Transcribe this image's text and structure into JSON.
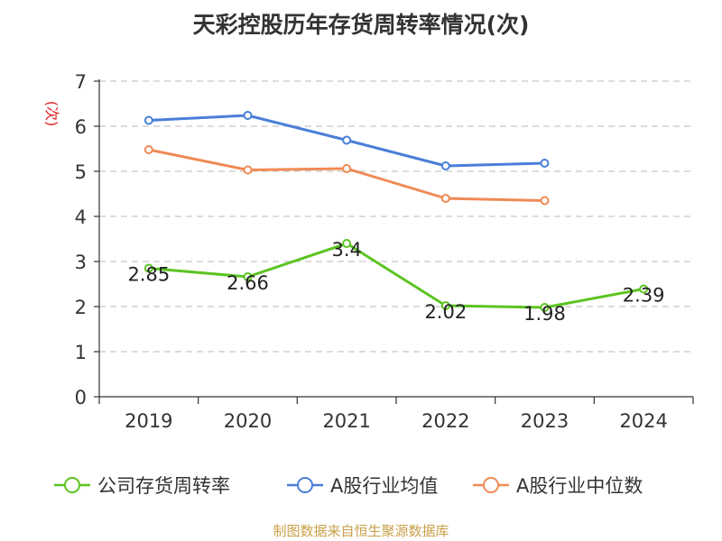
{
  "title": "天彩控股历年存货周转率情况(次)",
  "source": "制图数据来自恒生聚源数据库",
  "chart_data": {
    "type": "line",
    "categories": [
      "2019",
      "2020",
      "2021",
      "2022",
      "2023",
      "2024"
    ],
    "ylabel": "(次)",
    "ylim": [
      0,
      7
    ],
    "yticks": [
      "0",
      "1",
      "2",
      "3",
      "4",
      "5",
      "6",
      "7"
    ],
    "grid": true,
    "legend_position": "bottom",
    "series": [
      {
        "name": "公司存货周转率",
        "color": "#5cc422",
        "values": [
          2.85,
          2.66,
          3.4,
          2.02,
          1.98,
          2.39
        ],
        "labels": [
          "2.85",
          "2.66",
          "3.4",
          "2.02",
          "1.98",
          "2.39"
        ]
      },
      {
        "name": "A股行业均值",
        "color": "#4a7fd8",
        "values": [
          6.13,
          6.24,
          5.69,
          5.12,
          5.18,
          null
        ]
      },
      {
        "name": "A股行业中位数",
        "color": "#f08a55",
        "values": [
          5.48,
          5.03,
          5.06,
          4.4,
          4.35,
          null
        ]
      }
    ]
  }
}
